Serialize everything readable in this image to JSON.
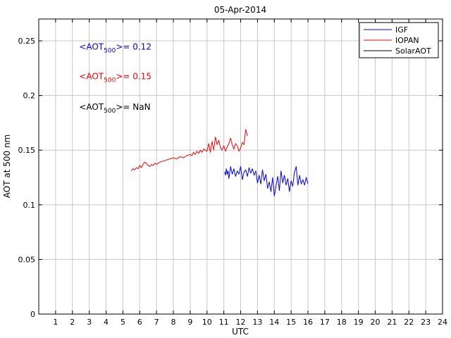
{
  "chart_data": {
    "type": "line",
    "title": "05-Apr-2014",
    "xlabel": "UTC",
    "ylabel": "AOT at 500 nm",
    "xlim": [
      0,
      24
    ],
    "ylim": [
      0,
      0.27
    ],
    "xticks": [
      1,
      2,
      3,
      4,
      5,
      6,
      7,
      8,
      9,
      10,
      11,
      12,
      13,
      14,
      15,
      16,
      17,
      18,
      19,
      20,
      21,
      22,
      23,
      24
    ],
    "yticks": [
      0,
      0.05,
      0.1,
      0.15,
      0.2,
      0.25
    ],
    "ytick_labels": [
      "0",
      "0.05",
      "0.1",
      "0.15",
      "0.2",
      "0.25"
    ],
    "grid": true,
    "legend_position": "top-right",
    "legend": [
      {
        "label": "IGF",
        "color": "#0000ff"
      },
      {
        "label": "IOPAN",
        "color": "#ff0000"
      },
      {
        "label": "SolarAOT",
        "color": "#000000"
      }
    ],
    "annotations": [
      {
        "prefix": "<AOT",
        "sub": "500",
        "suffix": ">= 0.12",
        "color": "#0000ff",
        "x": 2.4,
        "y": 0.242
      },
      {
        "prefix": "<AOT",
        "sub": "500",
        "suffix": ">= 0.15",
        "color": "#ff0000",
        "x": 2.4,
        "y": 0.215
      },
      {
        "prefix": "<AOT",
        "sub": "500",
        "suffix": ">=  NaN",
        "color": "#000000",
        "x": 2.4,
        "y": 0.187
      }
    ],
    "series": [
      {
        "name": "IGF",
        "color": "#0000ff",
        "x": [
          11.05,
          11.1,
          11.15,
          11.2,
          11.25,
          11.3,
          11.4,
          11.5,
          11.6,
          11.7,
          11.8,
          11.9,
          12.0,
          12.1,
          12.2,
          12.3,
          12.4,
          12.5,
          12.6,
          12.7,
          12.8,
          12.9,
          13.0,
          13.1,
          13.2,
          13.3,
          13.4,
          13.5,
          13.6,
          13.7,
          13.8,
          13.9,
          14.0,
          14.1,
          14.2,
          14.3,
          14.4,
          14.5,
          14.6,
          14.7,
          14.8,
          14.9,
          15.0,
          15.1,
          15.2,
          15.3,
          15.4,
          15.5,
          15.6,
          15.7,
          15.8,
          15.9,
          16.0
        ],
        "values": [
          0.13,
          0.127,
          0.133,
          0.128,
          0.131,
          0.124,
          0.135,
          0.128,
          0.133,
          0.126,
          0.131,
          0.128,
          0.135,
          0.123,
          0.13,
          0.132,
          0.126,
          0.134,
          0.129,
          0.133,
          0.127,
          0.131,
          0.12,
          0.127,
          0.119,
          0.132,
          0.122,
          0.128,
          0.115,
          0.121,
          0.112,
          0.125,
          0.108,
          0.117,
          0.126,
          0.113,
          0.131,
          0.12,
          0.127,
          0.118,
          0.124,
          0.112,
          0.122,
          0.117,
          0.13,
          0.135,
          0.118,
          0.127,
          0.119,
          0.123,
          0.118,
          0.125,
          0.119
        ]
      },
      {
        "name": "IOPAN",
        "color": "#ff0000",
        "x": [
          5.5,
          5.6,
          5.7,
          5.8,
          5.9,
          6.0,
          6.1,
          6.2,
          6.3,
          6.4,
          6.5,
          6.6,
          6.7,
          6.8,
          6.9,
          7.0,
          7.2,
          7.4,
          7.6,
          7.8,
          8.0,
          8.2,
          8.4,
          8.6,
          8.8,
          9.0,
          9.1,
          9.2,
          9.3,
          9.4,
          9.5,
          9.6,
          9.7,
          9.8,
          9.9,
          10.0,
          10.1,
          10.2,
          10.3,
          10.4,
          10.5,
          10.6,
          10.7,
          10.8,
          10.9,
          11.0,
          11.1,
          11.2,
          11.3,
          11.4,
          11.5,
          11.6,
          11.7,
          11.8,
          11.9,
          12.0,
          12.1,
          12.2,
          12.3,
          12.4
        ],
        "values": [
          0.131,
          0.133,
          0.132,
          0.134,
          0.133,
          0.136,
          0.134,
          0.137,
          0.139,
          0.138,
          0.136,
          0.135,
          0.137,
          0.136,
          0.138,
          0.137,
          0.139,
          0.14,
          0.141,
          0.142,
          0.143,
          0.142,
          0.144,
          0.143,
          0.145,
          0.146,
          0.145,
          0.148,
          0.146,
          0.149,
          0.147,
          0.15,
          0.148,
          0.151,
          0.15,
          0.149,
          0.156,
          0.148,
          0.158,
          0.15,
          0.162,
          0.155,
          0.159,
          0.152,
          0.15,
          0.154,
          0.149,
          0.153,
          0.156,
          0.161,
          0.155,
          0.151,
          0.156,
          0.154,
          0.149,
          0.152,
          0.157,
          0.155,
          0.169,
          0.163
        ]
      }
    ]
  }
}
